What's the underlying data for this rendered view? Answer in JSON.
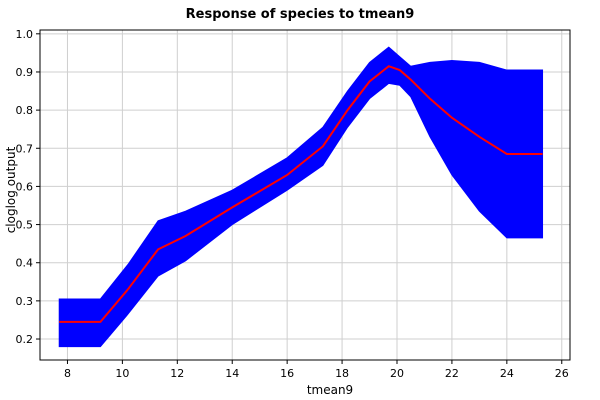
{
  "chart_data": {
    "type": "area",
    "title": "Response of species to tmean9",
    "xlabel": "tmean9",
    "ylabel": "cloglog output",
    "xlim": [
      7.0,
      26.3
    ],
    "ylim": [
      0.145,
      1.01
    ],
    "x_ticks": [
      8,
      10,
      12,
      14,
      16,
      18,
      20,
      22,
      24,
      26
    ],
    "y_ticks": [
      0.2,
      0.3,
      0.4,
      0.5,
      0.6,
      0.7,
      0.8,
      0.9,
      1.0
    ],
    "grid": true,
    "band_color": "#0000ff",
    "line_color": "#ff0000",
    "x": [
      7.7,
      9.2,
      10.2,
      11.3,
      12.3,
      14.0,
      16.0,
      17.3,
      18.2,
      19.0,
      19.7,
      20.1,
      20.5,
      21.2,
      22.0,
      23.0,
      24.0,
      25.3
    ],
    "mean": [
      0.245,
      0.245,
      0.33,
      0.435,
      0.47,
      0.545,
      0.63,
      0.705,
      0.8,
      0.875,
      0.915,
      0.905,
      0.88,
      0.83,
      0.78,
      0.73,
      0.685,
      0.685
    ],
    "upper": [
      0.305,
      0.305,
      0.395,
      0.51,
      0.535,
      0.59,
      0.675,
      0.755,
      0.85,
      0.925,
      0.965,
      0.94,
      0.915,
      0.925,
      0.93,
      0.925,
      0.905,
      0.905
    ],
    "lower": [
      0.18,
      0.18,
      0.265,
      0.365,
      0.405,
      0.5,
      0.59,
      0.655,
      0.755,
      0.83,
      0.87,
      0.865,
      0.835,
      0.73,
      0.63,
      0.535,
      0.465,
      0.465
    ]
  }
}
